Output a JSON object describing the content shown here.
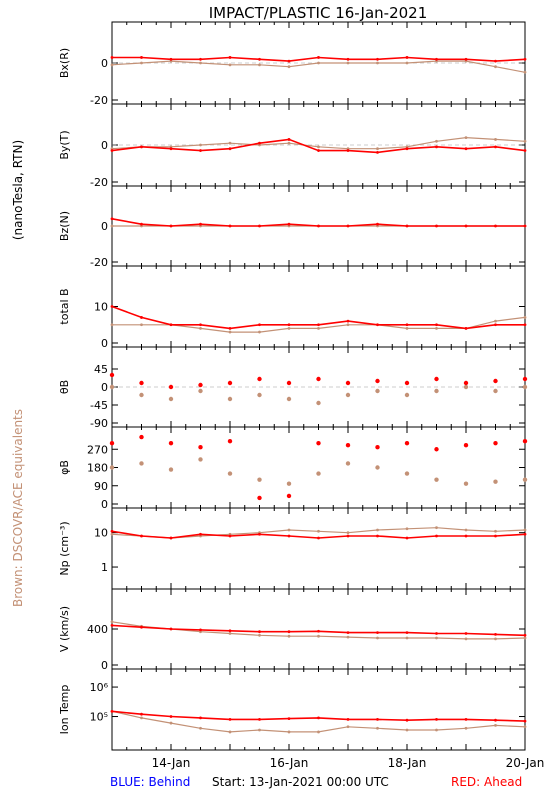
{
  "title": "IMPACT/PLASTIC   16-Jan-2021",
  "y_axis_group_label": "(nanoTesla, RTN)",
  "left_note": "Brown: DSCOVR/ACE equivalents",
  "footer": {
    "blue_label": "BLUE: Behind",
    "start_label": "Start: 13-Jan-2021 00:00 UTC",
    "red_label": "RED: Ahead"
  },
  "colors": {
    "ahead": "#ff0000",
    "dscovr": "#c39176",
    "behind": "#0000ff",
    "axis": "#000000"
  },
  "x_axis": {
    "range_days": [
      0,
      7
    ],
    "ticks": [
      {
        "pos": 1,
        "label": "14-Jan"
      },
      {
        "pos": 3,
        "label": "16-Jan"
      },
      {
        "pos": 5,
        "label": "18-Jan"
      },
      {
        "pos": 7,
        "label": "20-Jan"
      }
    ]
  },
  "chart_data": [
    {
      "type": "line",
      "ylabel": "Bx(R)",
      "ylim": [
        -20,
        20
      ],
      "yticks": [
        {
          "v": 0,
          "label": "0"
        },
        {
          "v": -20,
          "label": "-20"
        }
      ],
      "series": [
        {
          "name": "RED: Ahead",
          "x": [
            0,
            0.5,
            1,
            1.5,
            2,
            2.5,
            3,
            3.5,
            4,
            4.5,
            5,
            5.5,
            6,
            6.5,
            7
          ],
          "values": [
            3,
            3,
            2,
            2,
            3,
            2,
            1,
            3,
            2,
            2,
            3,
            2,
            2,
            1,
            2
          ]
        },
        {
          "name": "Brown: DSCOVR/ACE equivalents",
          "x": [
            0,
            0.5,
            1,
            1.5,
            2,
            2.5,
            3,
            3.5,
            4,
            4.5,
            5,
            5.5,
            6,
            6.5,
            7
          ],
          "values": [
            -1,
            0,
            1,
            0,
            -1,
            -1,
            -2,
            0,
            0,
            0,
            0,
            1,
            1,
            -2,
            -5
          ]
        }
      ]
    },
    {
      "type": "line",
      "ylabel": "By(T)",
      "ylim": [
        -20,
        20
      ],
      "yticks": [
        {
          "v": 0,
          "label": "0"
        },
        {
          "v": -20,
          "label": "-20"
        }
      ],
      "series": [
        {
          "name": "RED: Ahead",
          "x": [
            0,
            0.5,
            1,
            1.5,
            2,
            2.5,
            3,
            3.5,
            4,
            4.5,
            5,
            5.5,
            6,
            6.5,
            7
          ],
          "values": [
            -3,
            -1,
            -2,
            -3,
            -2,
            1,
            3,
            -3,
            -3,
            -4,
            -2,
            -1,
            -2,
            -1,
            -3
          ]
        },
        {
          "name": "Brown: DSCOVR/ACE equivalents",
          "x": [
            0,
            0.5,
            1,
            1.5,
            2,
            2.5,
            3,
            3.5,
            4,
            4.5,
            5,
            5.5,
            6,
            6.5,
            7
          ],
          "values": [
            -2,
            -1,
            -1,
            0,
            1,
            0,
            1,
            -1,
            -2,
            -2,
            -1,
            2,
            4,
            3,
            2
          ]
        }
      ]
    },
    {
      "type": "line",
      "ylabel": "Bz(N)",
      "ylim": [
        -20,
        20
      ],
      "yticks": [
        {
          "v": 0,
          "label": "0"
        },
        {
          "v": -20,
          "label": "-20"
        }
      ],
      "series": [
        {
          "name": "RED: Ahead",
          "x": [
            0,
            0.5,
            1,
            1.5,
            2,
            2.5,
            3,
            3.5,
            4,
            4.5,
            5,
            5.5,
            6,
            6.5,
            7
          ],
          "values": [
            4,
            1,
            0,
            1,
            0,
            0,
            1,
            0,
            0,
            1,
            0,
            0,
            0,
            0,
            0
          ]
        },
        {
          "name": "Brown: DSCOVR/ACE equivalents",
          "x": [
            0,
            0.5,
            1,
            1.5,
            2,
            2.5,
            3,
            3.5,
            4,
            4.5,
            5,
            5.5,
            6,
            6.5,
            7
          ],
          "values": [
            0,
            0,
            0,
            0,
            0,
            0,
            0,
            0,
            0,
            0,
            0,
            0,
            0,
            0,
            0
          ]
        }
      ]
    },
    {
      "type": "line",
      "ylabel": "total B",
      "ylim": [
        0,
        20
      ],
      "yticks": [
        {
          "v": 10,
          "label": "10"
        },
        {
          "v": 0,
          "label": "0"
        }
      ],
      "series": [
        {
          "name": "RED: Ahead",
          "x": [
            0,
            0.5,
            1,
            1.5,
            2,
            2.5,
            3,
            3.5,
            4,
            4.5,
            5,
            5.5,
            6,
            6.5,
            7
          ],
          "values": [
            10,
            7,
            5,
            5,
            4,
            5,
            5,
            5,
            6,
            5,
            5,
            5,
            4,
            5,
            5
          ]
        },
        {
          "name": "Brown: DSCOVR/ACE equivalents",
          "x": [
            0,
            0.5,
            1,
            1.5,
            2,
            2.5,
            3,
            3.5,
            4,
            4.5,
            5,
            5.5,
            6,
            6.5,
            7
          ],
          "values": [
            5,
            5,
            5,
            4,
            3,
            3,
            4,
            4,
            5,
            5,
            4,
            4,
            4,
            6,
            7
          ]
        }
      ]
    },
    {
      "type": "scatter",
      "ylabel": "θB",
      "ylim": [
        -90,
        90
      ],
      "yticks": [
        {
          "v": 45,
          "label": "45"
        },
        {
          "v": 0,
          "label": "0"
        },
        {
          "v": -45,
          "label": "-45"
        },
        {
          "v": -90,
          "label": "-90"
        }
      ],
      "series": [
        {
          "name": "RED: Ahead",
          "x": [
            0,
            0.5,
            1,
            1.5,
            2,
            2.5,
            3,
            3.5,
            4,
            4.5,
            5,
            5.5,
            6,
            6.5,
            7
          ],
          "values": [
            30,
            10,
            0,
            5,
            10,
            20,
            10,
            20,
            10,
            15,
            10,
            20,
            10,
            15,
            20
          ]
        },
        {
          "name": "Brown: DSCOVR/ACE equivalents",
          "x": [
            0,
            0.5,
            1,
            1.5,
            2,
            2.5,
            3,
            3.5,
            4,
            4.5,
            5,
            5.5,
            6,
            6.5,
            7
          ],
          "values": [
            0,
            -20,
            -30,
            -10,
            -30,
            -20,
            -30,
            -40,
            -20,
            -10,
            -20,
            -10,
            0,
            -10,
            0
          ]
        }
      ]
    },
    {
      "type": "scatter",
      "ylabel": "φB",
      "ylim": [
        0,
        360
      ],
      "yticks": [
        {
          "v": 270,
          "label": "270"
        },
        {
          "v": 180,
          "label": "180"
        },
        {
          "v": 90,
          "label": "90"
        },
        {
          "v": 0,
          "label": "0"
        }
      ],
      "series": [
        {
          "name": "RED: Ahead",
          "x": [
            0,
            0.5,
            1,
            1.5,
            2,
            2.5,
            3,
            3.5,
            4,
            4.5,
            5,
            5.5,
            6,
            6.5,
            7
          ],
          "values": [
            300,
            330,
            300,
            280,
            310,
            30,
            40,
            300,
            290,
            280,
            300,
            270,
            290,
            300,
            310
          ]
        },
        {
          "name": "Brown: DSCOVR/ACE equivalents",
          "x": [
            0,
            0.5,
            1,
            1.5,
            2,
            2.5,
            3,
            3.5,
            4,
            4.5,
            5,
            5.5,
            6,
            6.5,
            7
          ],
          "values": [
            180,
            200,
            170,
            220,
            150,
            120,
            100,
            150,
            200,
            180,
            150,
            120,
            100,
            110,
            120
          ]
        }
      ]
    },
    {
      "type": "line",
      "ylabel": "Np (cm⁻³)",
      "ylim": [
        0.3,
        40
      ],
      "log": true,
      "yticks": [
        {
          "v": 10,
          "label": "10"
        },
        {
          "v": 1,
          "label": "1"
        }
      ],
      "series": [
        {
          "name": "RED: Ahead",
          "x": [
            0,
            0.5,
            1,
            1.5,
            2,
            2.5,
            3,
            3.5,
            4,
            4.5,
            5,
            5.5,
            6,
            6.5,
            7
          ],
          "values": [
            11,
            8,
            7,
            9,
            8,
            9,
            8,
            7,
            8,
            8,
            7,
            8,
            8,
            8,
            9
          ]
        },
        {
          "name": "Brown: DSCOVR/ACE equivalents",
          "x": [
            0,
            0.5,
            1,
            1.5,
            2,
            2.5,
            3,
            3.5,
            4,
            4.5,
            5,
            5.5,
            6,
            6.5,
            7
          ],
          "values": [
            9,
            8,
            7,
            8,
            9,
            10,
            12,
            11,
            10,
            12,
            13,
            14,
            12,
            11,
            12
          ]
        }
      ]
    },
    {
      "type": "line",
      "ylabel": "V (km/s)",
      "ylim": [
        0,
        800
      ],
      "yticks": [
        {
          "v": 400,
          "label": "400"
        },
        {
          "v": 0,
          "label": "0"
        }
      ],
      "series": [
        {
          "name": "RED: Ahead",
          "x": [
            0,
            0.5,
            1,
            1.5,
            2,
            2.5,
            3,
            3.5,
            4,
            4.5,
            5,
            5.5,
            6,
            6.5,
            7
          ],
          "values": [
            440,
            420,
            400,
            390,
            380,
            370,
            370,
            375,
            360,
            360,
            360,
            350,
            350,
            340,
            330
          ]
        },
        {
          "name": "Brown: DSCOVR/ACE equivalents",
          "x": [
            0,
            0.5,
            1,
            1.5,
            2,
            2.5,
            3,
            3.5,
            4,
            4.5,
            5,
            5.5,
            6,
            6.5,
            7
          ],
          "values": [
            480,
            430,
            400,
            370,
            350,
            330,
            320,
            320,
            310,
            300,
            300,
            300,
            290,
            290,
            300
          ]
        }
      ]
    },
    {
      "type": "line",
      "ylabel": "Ion Temp",
      "ylim": [
        10000,
        3000000
      ],
      "log": true,
      "yticks": [
        {
          "v": 1000000,
          "label": "10⁶"
        },
        {
          "v": 100000,
          "label": "10⁵"
        }
      ],
      "series": [
        {
          "name": "RED: Ahead",
          "x": [
            0,
            0.5,
            1,
            1.5,
            2,
            2.5,
            3,
            3.5,
            4,
            4.5,
            5,
            5.5,
            6,
            6.5,
            7
          ],
          "values": [
            150000,
            120000,
            100000,
            90000,
            80000,
            80000,
            85000,
            90000,
            80000,
            80000,
            75000,
            80000,
            80000,
            75000,
            70000
          ]
        },
        {
          "name": "Brown: DSCOVR/ACE equivalents",
          "x": [
            0,
            0.5,
            1,
            1.5,
            2,
            2.5,
            3,
            3.5,
            4,
            4.5,
            5,
            5.5,
            6,
            6.5,
            7
          ],
          "values": [
            150000,
            90000,
            60000,
            40000,
            30000,
            35000,
            30000,
            30000,
            45000,
            40000,
            35000,
            35000,
            40000,
            50000,
            45000
          ]
        }
      ]
    }
  ]
}
